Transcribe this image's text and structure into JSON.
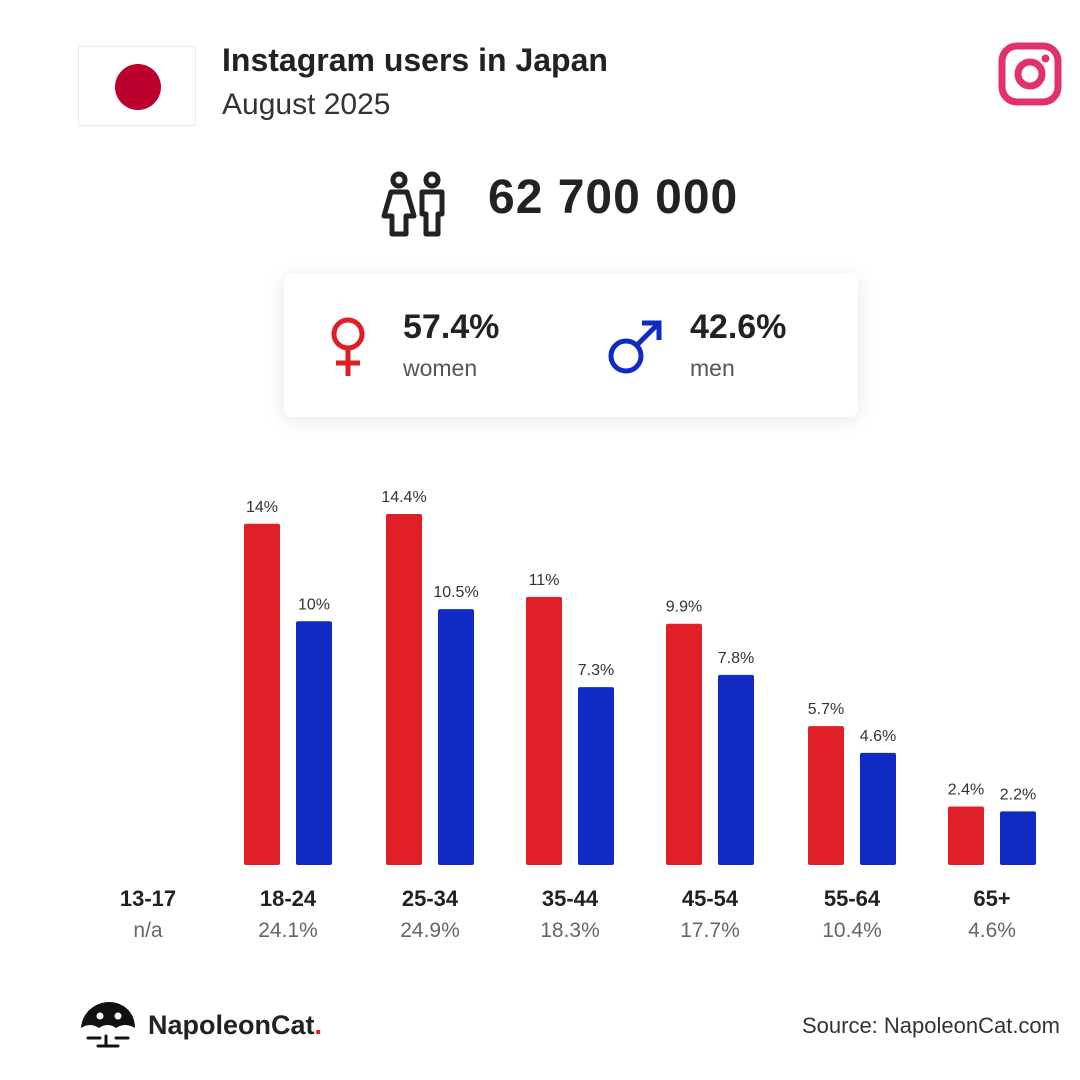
{
  "header": {
    "title": "Instagram users in Japan",
    "subtitle": "August 2025"
  },
  "icons": {
    "flag": "japan-flag-icon",
    "brand": "instagram-icon",
    "users": "users-icon",
    "women": "female-symbol-icon",
    "men": "male-symbol-icon",
    "logo": "napoleoncat-logo-icon"
  },
  "colors": {
    "women": "#e01e26",
    "men": "#0f2bc4",
    "flag_red": "#bc002d",
    "instagram": "#e1306c",
    "text": "#222222",
    "muted": "#555555"
  },
  "total_users": "62 700 000",
  "gender": {
    "women": {
      "value": "57.4%",
      "label": "women"
    },
    "men": {
      "value": "42.6%",
      "label": "men"
    }
  },
  "chart_data": {
    "type": "bar",
    "categories": [
      "13-17",
      "18-24",
      "25-34",
      "35-44",
      "45-54",
      "55-64",
      "65+"
    ],
    "category_totals": [
      "n/a",
      "24.1%",
      "24.9%",
      "18.3%",
      "17.7%",
      "10.4%",
      "4.6%"
    ],
    "series": [
      {
        "key": "women",
        "values": [
          null,
          14,
          14.4,
          11,
          9.9,
          5.7,
          2.4
        ],
        "labels": [
          "",
          "14%",
          "14.4%",
          "11%",
          "9.9%",
          "5.7%",
          "2.4%"
        ]
      },
      {
        "key": "men",
        "values": [
          null,
          10,
          10.5,
          7.3,
          7.8,
          4.6,
          2.2
        ],
        "labels": [
          "",
          "10%",
          "10.5%",
          "7.3%",
          "7.8%",
          "4.6%",
          "2.2%"
        ]
      }
    ],
    "ylim": [
      0,
      14.4
    ],
    "grid": false,
    "legend": "none"
  },
  "footer": {
    "brand_name": "NapoleonCat",
    "brand_suffix": ".",
    "source": "Source: NapoleonCat.com"
  }
}
